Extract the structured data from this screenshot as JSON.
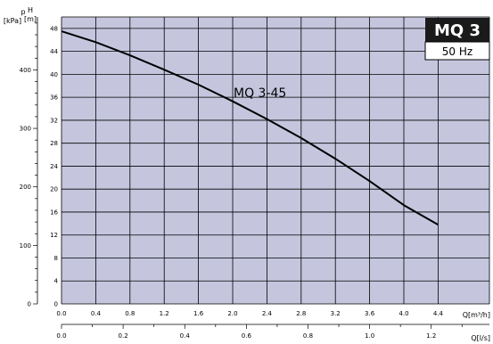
{
  "header": {
    "model": "MQ 3",
    "frequency": "50 Hz"
  },
  "colors": {
    "plot_background": "#c5c6de",
    "grid": "#000000",
    "curve": "#000000",
    "badge_background": "#1a1a1a",
    "badge_text": "#ffffff"
  },
  "chart_data": {
    "type": "line",
    "title": "",
    "grid": true,
    "series": [
      {
        "name": "MQ 3-45",
        "x": [
          0.0,
          0.4,
          0.8,
          1.2,
          1.6,
          2.0,
          2.4,
          2.8,
          3.2,
          3.6,
          4.0,
          4.4
        ],
        "y": [
          47.5,
          45.6,
          43.3,
          40.8,
          38.2,
          35.3,
          32.2,
          28.9,
          25.3,
          21.4,
          17.2,
          13.8
        ]
      }
    ],
    "axes": {
      "x_main": {
        "label": "Q[m³/h]",
        "range": [
          0,
          5
        ],
        "ticks": [
          "0.0",
          "0.4",
          "0.8",
          "1.2",
          "1.6",
          "2.0",
          "2.4",
          "2.8",
          "3.2",
          "3.6",
          "4.0",
          "4.4"
        ],
        "tick_values": [
          0.0,
          0.4,
          0.8,
          1.2,
          1.6,
          2.0,
          2.4,
          2.8,
          3.2,
          3.6,
          4.0,
          4.4
        ]
      },
      "x_secondary": {
        "label": "Q[l/s]",
        "unit_factor": 3.6,
        "ticks": [
          "0.0",
          "0.2",
          "0.4",
          "0.6",
          "0.8",
          "1.0",
          "1.2"
        ],
        "tick_values": [
          0.0,
          0.2,
          0.4,
          0.6,
          0.8,
          1.0,
          1.2
        ]
      },
      "y_head": {
        "label_line1": "H",
        "label_line2": "[m]",
        "range": [
          0,
          50
        ],
        "ticks": [
          "0",
          "4",
          "8",
          "12",
          "16",
          "20",
          "24",
          "28",
          "32",
          "36",
          "40",
          "44",
          "48"
        ],
        "tick_values": [
          0,
          4,
          8,
          12,
          16,
          20,
          24,
          28,
          32,
          36,
          40,
          44,
          48
        ]
      },
      "y_pressure": {
        "label_line1": "p",
        "label_line2": "[kPa]",
        "unit_factor": 9.81,
        "ticks": [
          "0",
          "100",
          "200",
          "300",
          "400"
        ],
        "tick_values": [
          0,
          100,
          200,
          300,
          400
        ]
      }
    }
  }
}
